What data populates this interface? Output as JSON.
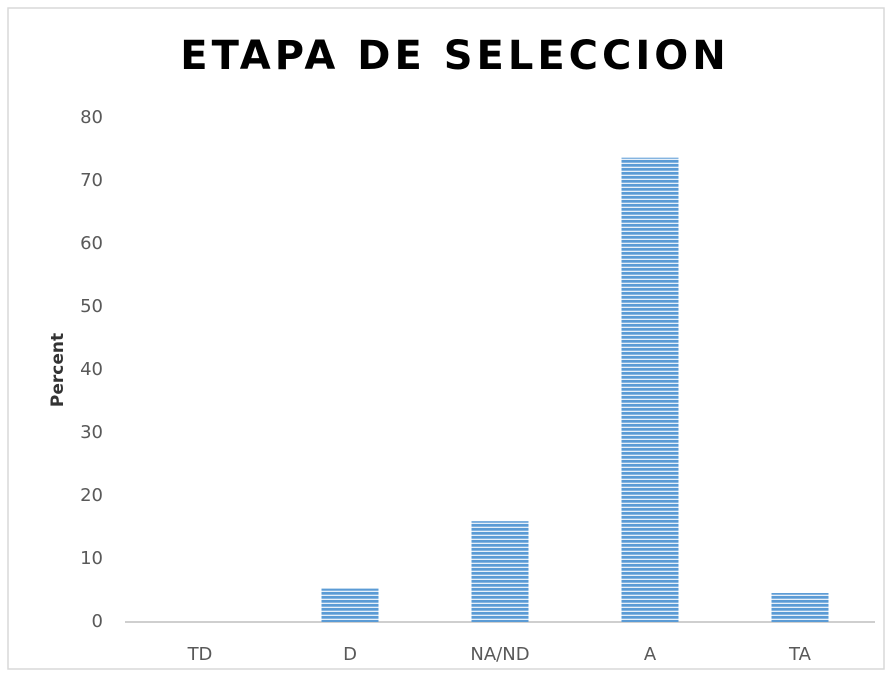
{
  "chart_data": {
    "type": "bar",
    "title": "ETAPA DE SELECCION",
    "y_label": "Percent",
    "categories": [
      "TD",
      "D",
      "NA/ND",
      "A",
      "TA"
    ],
    "values": [
      0,
      5.3,
      16.0,
      73.7,
      4.6
    ],
    "color": "#5b9bd5",
    "ylim": [
      0,
      80
    ],
    "yticks": [
      0,
      10,
      20,
      30,
      40,
      50,
      60,
      70,
      80
    ],
    "grid": false
  }
}
